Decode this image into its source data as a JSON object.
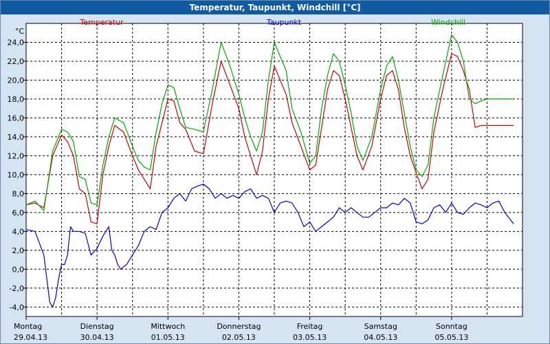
{
  "window": {
    "title": "Temperatur, Taupunkt, Windchill [°C]"
  },
  "chart_data": {
    "type": "line",
    "ylabel": "°C",
    "ylim": [
      -5,
      26
    ],
    "yticks": [
      24,
      22,
      20,
      18,
      16,
      14,
      12,
      10,
      8,
      6,
      4,
      2,
      0,
      -2,
      -4
    ],
    "ytick_labels": [
      "24,0",
      "22,0",
      "20,0",
      "18,0",
      "16,0",
      "14,0",
      "12,0",
      "10,0",
      "8,0",
      "6,0",
      "4,0",
      "2,0",
      "0,0",
      "-2,0",
      "-4,0"
    ],
    "x_start": "29.04.13 00:00",
    "x_end": "05.05.13 24:00",
    "xticks": [
      {
        "day": "Montag",
        "date": "29.04.13"
      },
      {
        "day": "Dienstag",
        "date": "30.04.13"
      },
      {
        "day": "Mittwoch",
        "date": "01.05.13"
      },
      {
        "day": "Donnerstag",
        "date": "02.05.13"
      },
      {
        "day": "Freitag",
        "date": "03.05.13"
      },
      {
        "day": "Samstag",
        "date": "04.05.13"
      },
      {
        "day": "Sonntag",
        "date": "05.05.13"
      }
    ],
    "grid": true,
    "legend_position": "top",
    "series": [
      {
        "name": "Temperatur",
        "color": "#cc0000",
        "x_hours": [
          0,
          3,
          6,
          9,
          12,
          14,
          16,
          18,
          20,
          22,
          24,
          26,
          28,
          30,
          33,
          36,
          38,
          40,
          42,
          44,
          46,
          48,
          50,
          52,
          54,
          57,
          60,
          63,
          66,
          69,
          72,
          74,
          76,
          78,
          80,
          82,
          84,
          86,
          88,
          90,
          93,
          96,
          98,
          100,
          102,
          104,
          106,
          108,
          110,
          112,
          114,
          117,
          120,
          122,
          124,
          126,
          128,
          130,
          132,
          134,
          136,
          138,
          141,
          144,
          146,
          148,
          150,
          152,
          154,
          156,
          158,
          160,
          162,
          165
        ],
        "values": [
          6.8,
          7.0,
          6.5,
          12.0,
          14.2,
          13.5,
          12.0,
          8.5,
          8.0,
          5.0,
          4.8,
          10.0,
          13.0,
          15.2,
          14.5,
          12.0,
          10.5,
          9.5,
          8.5,
          13.0,
          15.5,
          18.0,
          17.8,
          15.5,
          14.8,
          12.5,
          12.2,
          17.5,
          22.0,
          19.5,
          17.0,
          14.0,
          12.0,
          10.0,
          12.5,
          18.0,
          21.5,
          20.0,
          18.5,
          15.5,
          13.0,
          10.5,
          11.0,
          15.0,
          19.0,
          21.0,
          20.5,
          18.0,
          15.0,
          12.0,
          10.5,
          13.0,
          18.0,
          20.5,
          21.0,
          19.0,
          15.0,
          12.0,
          10.2,
          8.5,
          9.5,
          14.5,
          19.0,
          22.8,
          22.5,
          21.0,
          19.0,
          15.0,
          15.2,
          15.2,
          15.2,
          15.2,
          15.2,
          15.2
        ]
      },
      {
        "name": "Taupunkt",
        "color": "#0000cc",
        "x_hours": [
          0,
          3,
          6,
          8,
          9,
          10,
          11,
          12,
          13,
          14,
          15,
          16,
          18,
          20,
          22,
          24,
          26,
          28,
          29,
          30,
          31,
          32,
          34,
          36,
          38,
          40,
          42,
          44,
          46,
          48,
          50,
          52,
          54,
          56,
          58,
          60,
          62,
          64,
          66,
          68,
          70,
          72,
          74,
          76,
          78,
          80,
          82,
          84,
          86,
          88,
          90,
          92,
          94,
          96,
          98,
          100,
          102,
          104,
          106,
          108,
          110,
          112,
          114,
          116,
          118,
          120,
          122,
          124,
          126,
          128,
          130,
          132,
          134,
          136,
          138,
          140,
          142,
          144,
          146,
          148,
          150,
          152,
          154,
          156,
          158,
          160,
          162,
          165
        ],
        "values": [
          4.2,
          4.0,
          1.5,
          -3.5,
          -4.0,
          -3.0,
          -1.0,
          0.5,
          0.5,
          1.5,
          4.5,
          4.0,
          4.0,
          3.8,
          1.5,
          2.2,
          3.5,
          4.5,
          2.0,
          1.5,
          0.5,
          0.0,
          0.5,
          1.5,
          2.5,
          4.0,
          4.5,
          4.2,
          6.0,
          6.5,
          7.5,
          8.0,
          7.2,
          8.5,
          8.8,
          9.0,
          8.5,
          7.5,
          8.0,
          7.5,
          7.8,
          7.5,
          8.2,
          8.5,
          7.5,
          7.8,
          7.5,
          6.0,
          7.0,
          7.2,
          7.0,
          6.0,
          4.5,
          5.0,
          4.0,
          4.5,
          5.0,
          5.5,
          6.5,
          6.0,
          6.5,
          6.0,
          5.5,
          5.5,
          6.0,
          6.5,
          6.5,
          7.0,
          6.8,
          7.5,
          7.0,
          5.0,
          4.8,
          5.2,
          6.5,
          6.8,
          6.0,
          7.0,
          6.0,
          5.8,
          6.5,
          7.0,
          6.8,
          6.5,
          7.0,
          7.2,
          6.0,
          4.8
        ]
      },
      {
        "name": "Windchill",
        "color": "#00aa00",
        "x_hours": [
          0,
          3,
          6,
          9,
          12,
          14,
          16,
          18,
          20,
          22,
          24,
          26,
          28,
          30,
          33,
          36,
          38,
          40,
          42,
          44,
          46,
          48,
          50,
          52,
          54,
          57,
          60,
          63,
          66,
          69,
          72,
          74,
          76,
          78,
          80,
          82,
          84,
          86,
          88,
          90,
          93,
          96,
          98,
          100,
          102,
          104,
          106,
          108,
          110,
          112,
          114,
          117,
          120,
          122,
          124,
          126,
          128,
          130,
          132,
          134,
          136,
          138,
          141,
          144,
          146,
          148,
          150,
          152,
          154,
          156,
          158,
          160,
          162,
          165
        ],
        "values": [
          6.8,
          7.2,
          6.2,
          12.5,
          14.8,
          14.5,
          13.5,
          9.8,
          9.5,
          7.0,
          6.8,
          11.0,
          14.0,
          16.0,
          15.5,
          13.0,
          11.5,
          10.8,
          10.5,
          14.5,
          17.5,
          19.5,
          19.2,
          17.0,
          15.0,
          14.8,
          14.5,
          19.0,
          24.0,
          21.5,
          18.5,
          16.0,
          14.0,
          12.5,
          14.5,
          20.0,
          24.0,
          22.5,
          21.0,
          17.0,
          14.5,
          11.2,
          12.0,
          17.0,
          20.5,
          22.8,
          22.0,
          19.5,
          16.5,
          13.0,
          11.5,
          14.0,
          19.0,
          21.5,
          22.5,
          20.0,
          16.5,
          13.0,
          10.5,
          9.8,
          11.0,
          16.0,
          20.5,
          24.8,
          24.0,
          22.0,
          18.0,
          17.5,
          17.8,
          18.0,
          18.0,
          18.0,
          18.0,
          18.0
        ]
      }
    ]
  }
}
